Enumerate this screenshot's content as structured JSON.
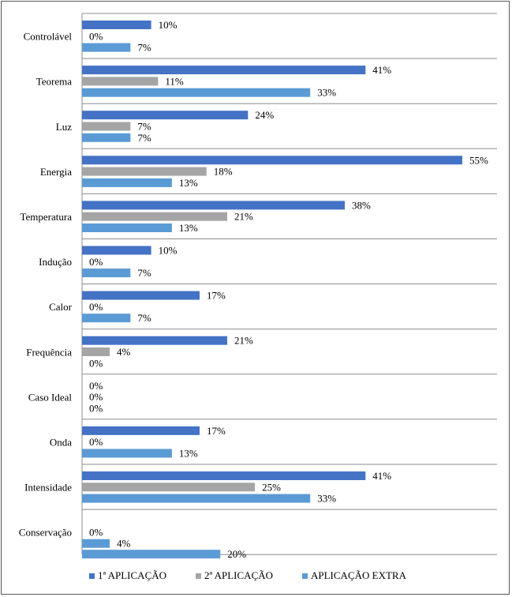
{
  "chart_data": {
    "type": "bar",
    "orientation": "horizontal",
    "categories": [
      "Controlável",
      "Teorema",
      "Luz",
      "Energia",
      "Temperatura",
      "Indução",
      "Calor",
      "Frequência",
      "Caso Ideal",
      "Onda",
      "Intensidade",
      "Conservação"
    ],
    "series": [
      {
        "name": "1ª APLICAÇÃO",
        "color": "#4472c4",
        "values": [
          10,
          41,
          24,
          55,
          38,
          10,
          17,
          21,
          0,
          17,
          41,
          null
        ]
      },
      {
        "name": "2ª APLICAÇÃO",
        "color": "#a5a5a5",
        "values": [
          0,
          11,
          7,
          18,
          21,
          0,
          0,
          4,
          0,
          0,
          25,
          0
        ]
      },
      {
        "name": "APLICAÇÃO EXTRA",
        "color": "#5b9bd5",
        "values": [
          7,
          33,
          7,
          13,
          13,
          7,
          7,
          0,
          0,
          13,
          33,
          4
        ]
      }
    ],
    "extra_bar": {
      "category": "Conservação",
      "value": 20,
      "color": "#5b9bd5"
    },
    "value_suffix": "%",
    "xlim": [
      0,
      58
    ],
    "grid": "horizontal separators between categories",
    "legend": "bottom"
  }
}
